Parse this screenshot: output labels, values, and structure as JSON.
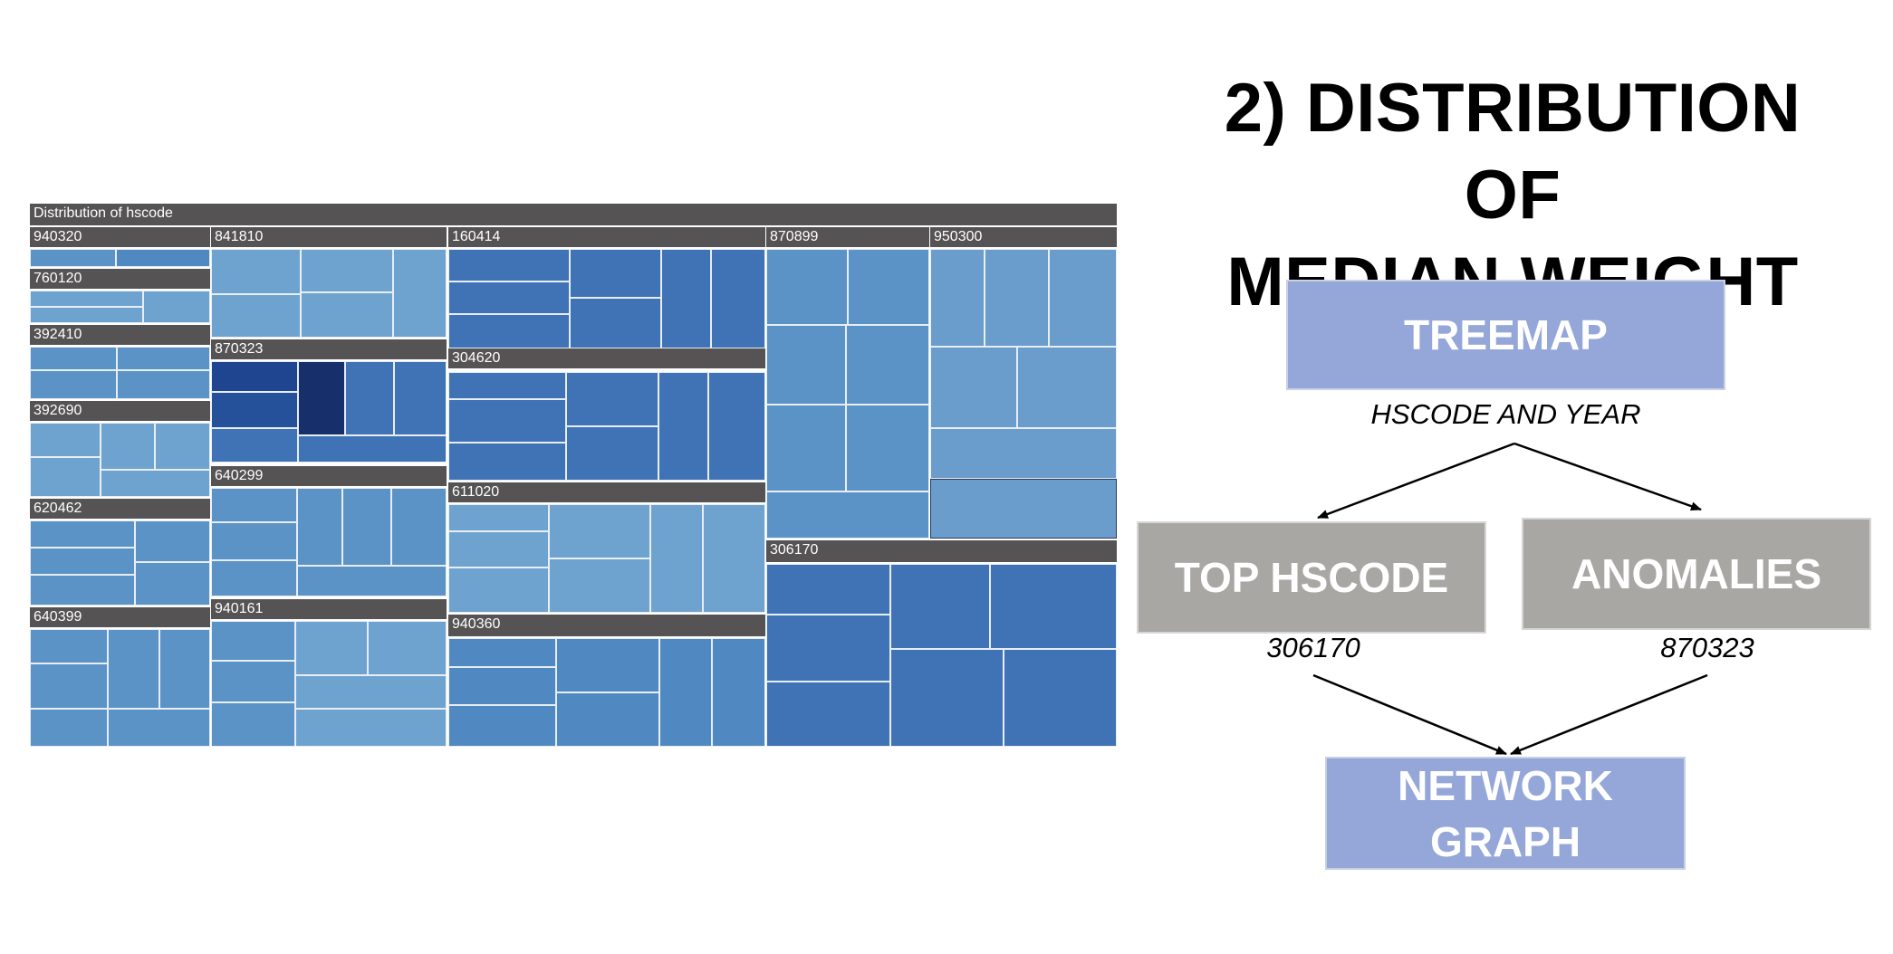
{
  "title": {
    "line1": "2) DISTRIBUTION OF",
    "line2": "MEDIAN WEIGHT"
  },
  "treemap": {
    "title": "Distribution of hscode",
    "groups": [
      "940320",
      "760120",
      "392410",
      "392690",
      "620462",
      "640399",
      "841810",
      "870323",
      "640299",
      "940161",
      "160414",
      "304620",
      "611020",
      "940360",
      "870899",
      "950300",
      "306170"
    ],
    "colors": {
      "header": "#555353",
      "light": "#6fa3cf",
      "medium": "#5b93c7",
      "dark": "#3f73b5",
      "darker": "#25509a",
      "darkest": "#172f6a",
      "cell_border": "#e8eef5"
    }
  },
  "flow": {
    "treemap_label": "TREEMAP",
    "subtitle": "HSCODE AND YEAR",
    "top_label": "TOP HSCODE",
    "top_value": "306170",
    "anomalies_label": "ANOMALIES",
    "anomalies_value": "870323",
    "network_line1": "NETWORK",
    "network_line2": "GRAPH",
    "colors": {
      "blue_box": "#94a7d8",
      "gray_box": "#a9a7a4"
    }
  }
}
